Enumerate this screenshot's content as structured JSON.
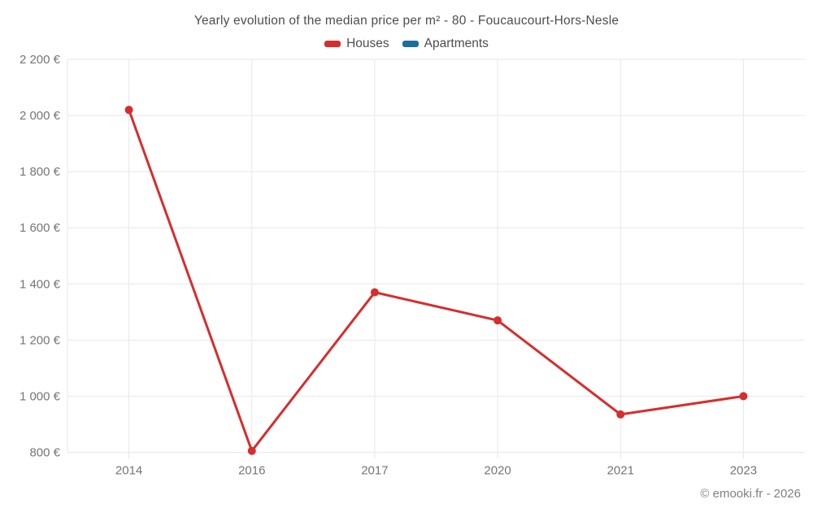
{
  "page": {
    "footer": "© emooki.fr - 2026"
  },
  "legend": {
    "items": [
      {
        "label": "Houses",
        "color": "#d72d2d"
      },
      {
        "label": "Apartments",
        "color": "#1a6f9c"
      }
    ]
  },
  "colors": {
    "grid": "#e7e7e7",
    "axis_text": "#757575",
    "title_text": "#4d4d4d",
    "background": "#ffffff",
    "houses": "#d72d2d",
    "apartments": "#1a6f9c"
  },
  "chart_data": {
    "type": "line",
    "title": "Yearly evolution of the median price per m² - 80 - Foucaucourt-Hors-Nesle",
    "categories": [
      "2014",
      "2016",
      "2017",
      "2020",
      "2021",
      "2023"
    ],
    "series": [
      {
        "name": "Houses",
        "color": "#d72d2d",
        "values": [
          2020,
          805,
          1370,
          1270,
          935,
          1000
        ]
      },
      {
        "name": "Apartments",
        "color": "#1a6f9c",
        "values": []
      }
    ],
    "xlabel": "",
    "ylabel": "",
    "ylim": [
      800,
      2200
    ],
    "y_ticks": [
      {
        "value": 800,
        "label": "800 €"
      },
      {
        "value": 1000,
        "label": "1 000 €"
      },
      {
        "value": 1200,
        "label": "1 200 €"
      },
      {
        "value": 1400,
        "label": "1 400 €"
      },
      {
        "value": 1600,
        "label": "1 600 €"
      },
      {
        "value": 1800,
        "label": "1 800 €"
      },
      {
        "value": 2000,
        "label": "2 000 €"
      },
      {
        "value": 2200,
        "label": "2 200 €"
      }
    ],
    "grid": true,
    "legend_position": "top",
    "marker_radius": 5,
    "line_width": 3
  }
}
